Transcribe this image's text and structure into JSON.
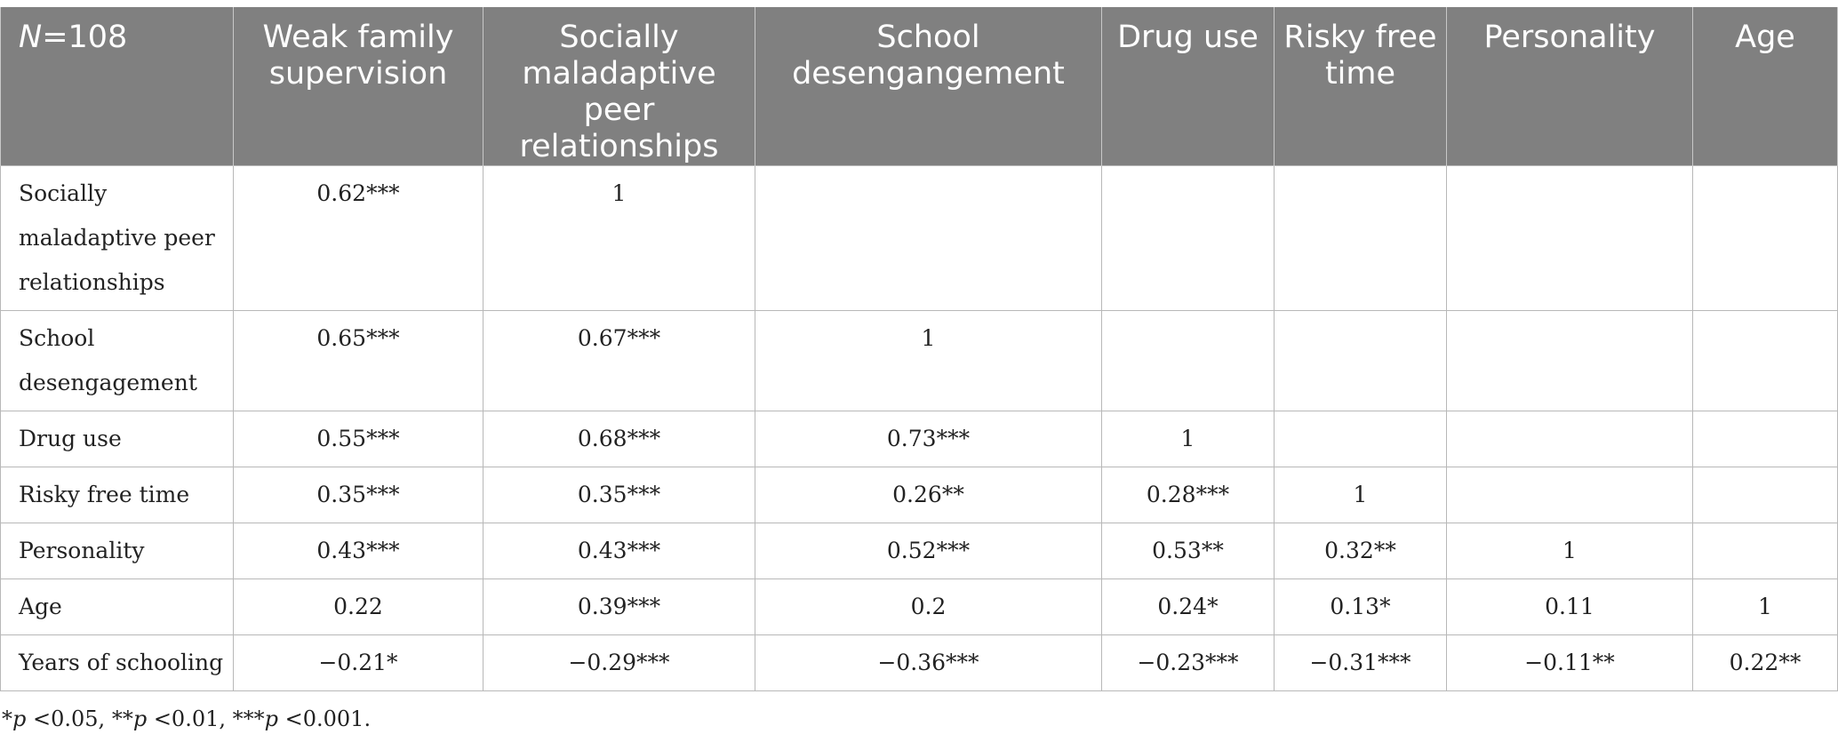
{
  "table": {
    "header": {
      "n_symbol": "N",
      "n_value": "=108",
      "columns": [
        "Weak family supervision",
        "Socially maladaptive peer relationships",
        "School desengangement",
        "Drug use",
        "Risky free time",
        "Personality",
        "Age"
      ]
    },
    "rows": [
      {
        "label": "Socially maladaptive peer relationships",
        "cells": [
          "0.62***",
          "1",
          "",
          "",
          "",
          "",
          ""
        ]
      },
      {
        "label": "School desengagement",
        "cells": [
          "0.65***",
          "0.67***",
          "1",
          "",
          "",
          "",
          ""
        ]
      },
      {
        "label": "Drug use",
        "cells": [
          "0.55***",
          "0.68***",
          "0.73***",
          "1",
          "",
          "",
          ""
        ]
      },
      {
        "label": "Risky free time",
        "cells": [
          "0.35***",
          "0.35***",
          "0.26**",
          "0.28***",
          "1",
          "",
          ""
        ]
      },
      {
        "label": "Personality",
        "cells": [
          "0.43***",
          "0.43***",
          "0.52***",
          "0.53**",
          "0.32**",
          "1",
          ""
        ]
      },
      {
        "label": "Age",
        "cells": [
          "0.22",
          "0.39***",
          "0.2",
          "0.24*",
          "0.13*",
          "0.11",
          "1"
        ]
      },
      {
        "label": "Years of schooling",
        "cells": [
          "−0.21*",
          "−0.29***",
          "−0.36***",
          "−0.23***",
          "−0.31***",
          "−0.11**",
          "0.22**"
        ]
      }
    ]
  },
  "footnote": {
    "p1_stars": "*",
    "p1_text": " <0.05, ",
    "p2_stars": "**",
    "p2_text": " <0.01, ",
    "p3_stars": "***",
    "p3_text": " <0.001.",
    "p_symbol": "p"
  }
}
